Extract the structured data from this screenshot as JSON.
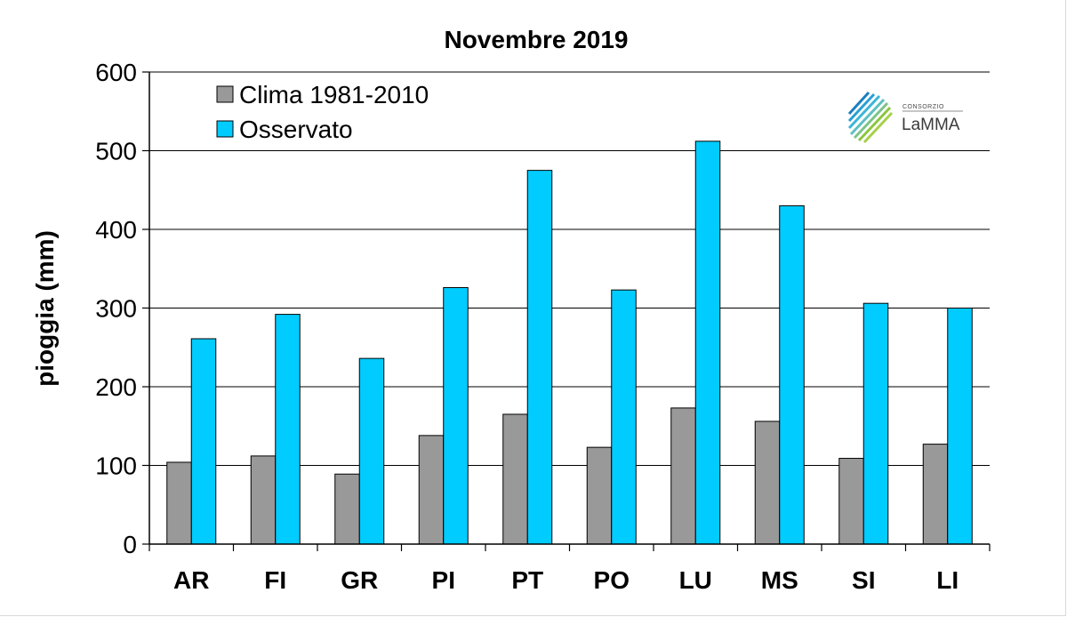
{
  "chart_data": {
    "type": "bar",
    "title": "Novembre 2019",
    "xlabel": "",
    "ylabel": "pioggia (mm)",
    "ylim": [
      0,
      600
    ],
    "yticks": [
      "0",
      "100",
      "200",
      "300",
      "400",
      "500",
      "600"
    ],
    "categories": [
      "AR",
      "FI",
      "GR",
      "PI",
      "PT",
      "PO",
      "LU",
      "MS",
      "SI",
      "LI"
    ],
    "series": [
      {
        "name": "Clima 1981-2010",
        "color": "#999999",
        "values": [
          104,
          112,
          89,
          138,
          165,
          123,
          173,
          156,
          109,
          127
        ]
      },
      {
        "name": "Osservato",
        "color": "#00ccff",
        "values": [
          261,
          292,
          236,
          326,
          475,
          323,
          512,
          430,
          306,
          300
        ]
      }
    ],
    "grid": true,
    "legend_position": "top-left"
  },
  "logo": {
    "line1": "CONSORZIO",
    "line2": "LaMMA"
  }
}
